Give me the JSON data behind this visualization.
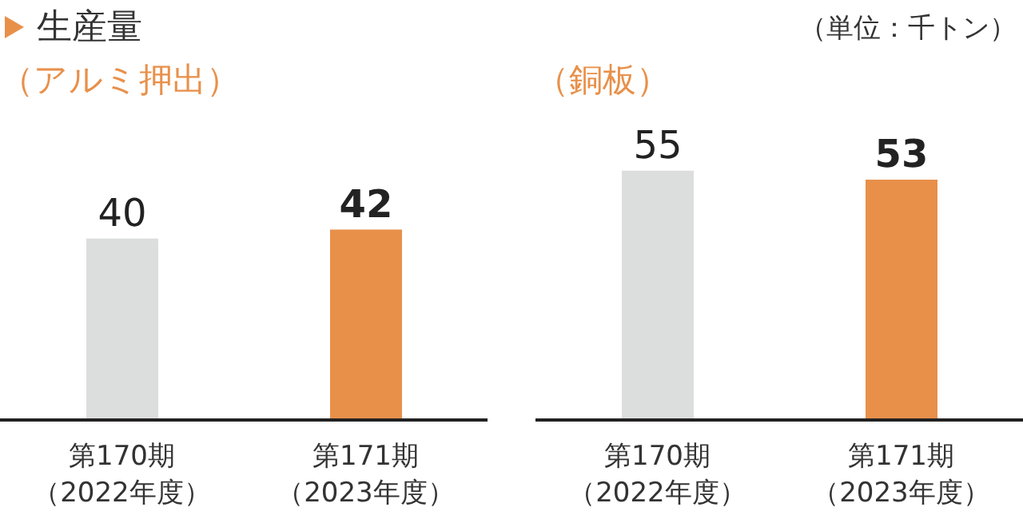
{
  "chart_data": [
    {
      "type": "bar",
      "title": "生産量",
      "subtitle": "（アルミ押出）",
      "categories": [
        "第170期（2022年度）",
        "第171期（2023年度）"
      ],
      "values": [
        40,
        42
      ],
      "colors": [
        "#dcdddd",
        "#e8904a"
      ],
      "data_labels": true
    },
    {
      "type": "bar",
      "subtitle": "（銅板）",
      "annotations": [
        "（単位：千トン）"
      ],
      "categories": [
        "第170期（2022年度）",
        "第171期（2023年度）"
      ],
      "values": [
        55,
        53
      ],
      "colors": [
        "#dcdddd",
        "#e8904a"
      ],
      "data_labels": true
    }
  ]
}
